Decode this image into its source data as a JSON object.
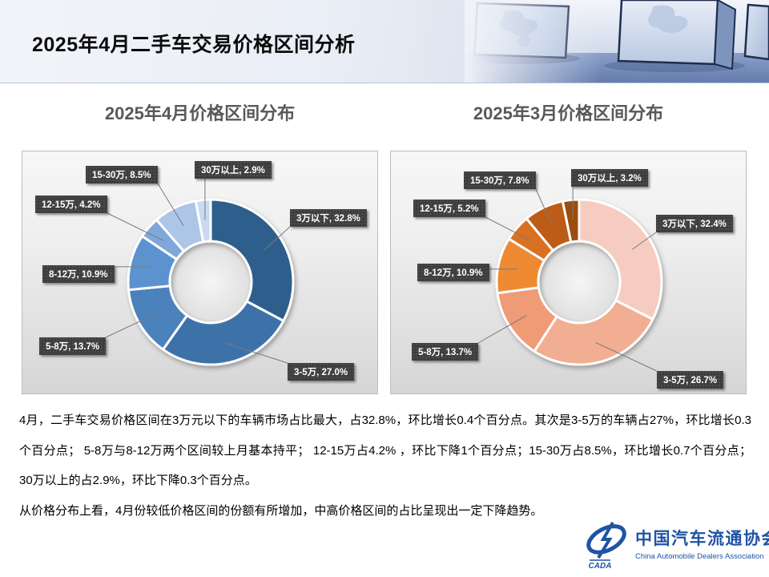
{
  "header": {
    "title": "2025年4月二手车交易价格区间分析"
  },
  "chart_data": [
    {
      "type": "pie",
      "donut": true,
      "hole_ratio": 0.5,
      "title": "2025年4月价格区间分布",
      "categories": [
        "3万以下",
        "3-5万",
        "5-8万",
        "8-12万",
        "12-15万",
        "15-30万",
        "30万以上"
      ],
      "values": [
        32.8,
        27.0,
        13.7,
        10.9,
        4.2,
        8.5,
        2.9
      ],
      "unit": "%",
      "labels": [
        "3万以下, 32.8%",
        "3-5万, 27.0%",
        "5-8万, 13.7%",
        "8-12万, 10.9%",
        "12-15万, 4.2%",
        "15-30万, 8.5%",
        "30万以上, 2.9%"
      ],
      "colors": [
        "#2F5E8C",
        "#3D72A8",
        "#4B82BB",
        "#5B93CE",
        "#7FA7DB",
        "#ADC6E8",
        "#C9D9F0"
      ],
      "start_angle_deg": 0,
      "direction": "clockwise",
      "legend": "none",
      "label_style": {
        "bg": "#3D3D3D",
        "text": "#FFFFFF"
      },
      "leader_line_color": "#7A7A7A",
      "title_color": "#595959"
    },
    {
      "type": "pie",
      "donut": true,
      "hole_ratio": 0.5,
      "title": "2025年3月价格区间分布",
      "categories": [
        "3万以下",
        "3-5万",
        "5-8万",
        "8-12万",
        "12-15万",
        "15-30万",
        "30万以上"
      ],
      "values": [
        32.4,
        26.7,
        13.7,
        10.9,
        5.2,
        7.8,
        3.2
      ],
      "unit": "%",
      "labels": [
        "3万以下, 32.4%",
        "3-5万, 26.7%",
        "5-8万, 13.7%",
        "8-12万, 10.9%",
        "12-15万, 5.2%",
        "15-30万, 7.8%",
        "30万以上, 3.2%"
      ],
      "colors": [
        "#F6CCC1",
        "#F2AE93",
        "#EF9B74",
        "#EE8B33",
        "#D96F22",
        "#BC5C18",
        "#9C4D10"
      ],
      "start_angle_deg": 0,
      "direction": "clockwise",
      "legend": "none",
      "label_style": {
        "bg": "#3D3D3D",
        "text": "#FFFFFF"
      },
      "leader_line_color": "#7A7A7A",
      "title_color": "#595959"
    }
  ],
  "summary": {
    "p1": "4月，二手车交易价格区间在3万元以下的车辆市场占比最大，占32.8%，环比增长0.4个百分点。其次是3-5万的车辆占27%，环比增长0.3个百分点； 5-8万与8-12万两个区间较上月基本持平； 12-15万占4.2% ，环比下降1个百分点；15-30万占8.5%，环比增长0.7个百分点； 30万以上的占2.9%，环比下降0.3个百分点。",
    "p2": "从价格分布上看，4月份较低价格区间的份额有所增加，中高价格区间的占比呈现出一定下降趋势。"
  },
  "logo": {
    "name_cn": "中国汽车流通协会",
    "name_en": "China Automobile Dealers Association",
    "emblem_text": "CADA",
    "color": "#2053A4"
  }
}
